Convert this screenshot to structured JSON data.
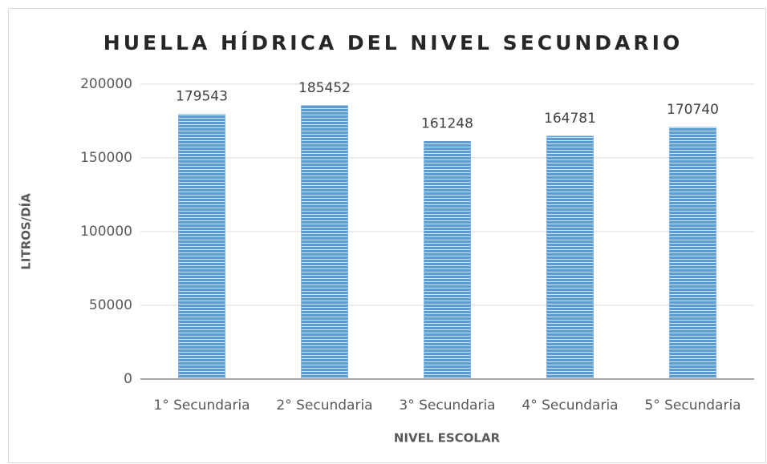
{
  "chart_data": {
    "type": "bar",
    "title": "HUELLA HÍDRICA DEL NIVEL SECUNDARIO",
    "x_label": "NIVEL ESCOLAR",
    "y_label": "LITROS/DÍA",
    "categories": [
      "1° Secundaria",
      "2° Secundaria",
      "3° Secundaria",
      "4° Secundaria",
      "5° Secundaria"
    ],
    "values": [
      179543,
      185452,
      161248,
      164781,
      170740
    ],
    "color": "#5b9bd5",
    "ylim": [
      0,
      200000
    ],
    "yticks": [
      0,
      50000,
      100000,
      150000,
      200000
    ],
    "grid": true
  }
}
